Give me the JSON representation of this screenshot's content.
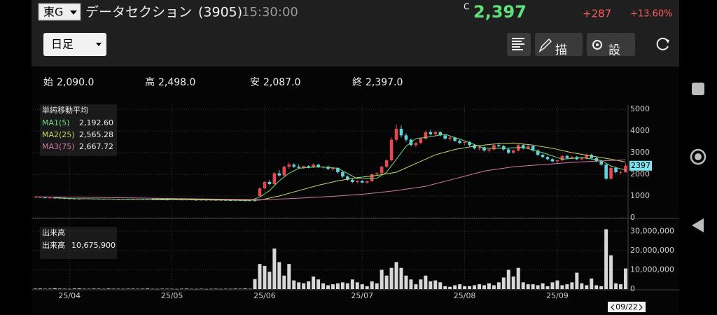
{
  "header": {
    "exchange": "東G",
    "name": "データセクション",
    "code": "(3905)",
    "time": "15:30:00",
    "price_flag": "C",
    "price": "2,397",
    "change": "+287",
    "change_pct": "+13.60%"
  },
  "toolbar": {
    "period": "日足",
    "draw": "描画",
    "settings": "設定"
  },
  "ohlc_row": [
    {
      "label": "始",
      "value": "2,090.0"
    },
    {
      "label": "高",
      "value": "2,498.0"
    },
    {
      "label": "安",
      "value": "2,087.0"
    },
    {
      "label": "終",
      "value": "2,397.0"
    }
  ],
  "chart_data": [
    {
      "type": "candlestick",
      "legend_title": "単純移動平均",
      "up_color": "#e8474f",
      "down_color": "#5fd3e0",
      "xlim": [
        -0.5,
        121.5
      ],
      "ylim": [
        0,
        5200
      ],
      "yticks": [
        0,
        1000,
        2000,
        3000,
        4000,
        5000
      ],
      "grid": true,
      "xticks": [
        {
          "value": 7,
          "label": "25/04"
        },
        {
          "value": 28,
          "label": "25/05"
        },
        {
          "value": 47,
          "label": "25/06"
        },
        {
          "value": 67,
          "label": "25/07"
        },
        {
          "value": 88,
          "label": "25/08"
        },
        {
          "value": 107,
          "label": "25/09"
        }
      ],
      "last_price": 2397,
      "cursor_label": "09/22",
      "ohlc": [
        [
          950,
          980,
          930,
          960
        ],
        [
          960,
          970,
          920,
          930
        ],
        [
          930,
          950,
          900,
          910
        ],
        [
          910,
          940,
          890,
          925
        ],
        [
          925,
          930,
          880,
          890
        ],
        [
          890,
          920,
          870,
          905
        ],
        [
          905,
          915,
          860,
          870
        ],
        [
          870,
          900,
          850,
          885
        ],
        [
          885,
          890,
          840,
          850
        ],
        [
          850,
          880,
          830,
          870
        ],
        [
          870,
          900,
          860,
          890
        ],
        [
          890,
          895,
          850,
          860
        ],
        [
          860,
          880,
          840,
          875
        ],
        [
          875,
          885,
          845,
          850
        ],
        [
          850,
          870,
          830,
          865
        ],
        [
          865,
          880,
          850,
          870
        ],
        [
          870,
          875,
          840,
          845
        ],
        [
          845,
          860,
          830,
          855
        ],
        [
          855,
          870,
          840,
          860
        ],
        [
          860,
          865,
          830,
          835
        ],
        [
          835,
          850,
          820,
          845
        ],
        [
          845,
          860,
          830,
          850
        ],
        [
          850,
          855,
          820,
          825
        ],
        [
          825,
          845,
          815,
          840
        ],
        [
          840,
          850,
          825,
          830
        ],
        [
          830,
          845,
          820,
          840
        ],
        [
          840,
          850,
          830,
          835
        ],
        [
          835,
          845,
          820,
          830
        ],
        [
          830,
          850,
          820,
          845
        ],
        [
          845,
          855,
          830,
          835
        ],
        [
          835,
          840,
          815,
          820
        ],
        [
          820,
          840,
          810,
          835
        ],
        [
          835,
          845,
          820,
          825
        ],
        [
          825,
          835,
          805,
          810
        ],
        [
          810,
          830,
          800,
          825
        ],
        [
          825,
          830,
          805,
          810
        ],
        [
          810,
          825,
          800,
          820
        ],
        [
          820,
          830,
          800,
          805
        ],
        [
          805,
          820,
          790,
          815
        ],
        [
          815,
          825,
          800,
          805
        ],
        [
          805,
          815,
          785,
          790
        ],
        [
          790,
          810,
          780,
          805
        ],
        [
          805,
          810,
          785,
          795
        ],
        [
          795,
          805,
          775,
          780
        ],
        [
          780,
          800,
          770,
          795
        ],
        [
          795,
          800,
          775,
          785
        ],
        [
          1000,
          1400,
          980,
          1350
        ],
        [
          1350,
          1700,
          1300,
          1650
        ],
        [
          1650,
          1750,
          1500,
          1550
        ],
        [
          1550,
          2100,
          1500,
          2050
        ],
        [
          2050,
          2200,
          1900,
          1950
        ],
        [
          1950,
          2400,
          1900,
          2350
        ],
        [
          2350,
          2550,
          2250,
          2450
        ],
        [
          2450,
          2500,
          2300,
          2350
        ],
        [
          2350,
          2450,
          2250,
          2300
        ],
        [
          2300,
          2400,
          2250,
          2380
        ],
        [
          2380,
          2420,
          2280,
          2320
        ],
        [
          2320,
          2500,
          2300,
          2450
        ],
        [
          2450,
          2480,
          2300,
          2320
        ],
        [
          2320,
          2380,
          2250,
          2350
        ],
        [
          2350,
          2400,
          2200,
          2250
        ],
        [
          2250,
          2350,
          2150,
          2300
        ],
        [
          2300,
          2320,
          2050,
          2100
        ],
        [
          2100,
          2150,
          1850,
          1900
        ],
        [
          1900,
          1950,
          1700,
          1750
        ],
        [
          1750,
          1800,
          1600,
          1650
        ],
        [
          1650,
          1720,
          1580,
          1700
        ],
        [
          1700,
          1750,
          1600,
          1620
        ],
        [
          1620,
          1700,
          1580,
          1680
        ],
        [
          1680,
          2050,
          1650,
          2000
        ],
        [
          2000,
          2100,
          1950,
          2050
        ],
        [
          2050,
          2400,
          2000,
          2350
        ],
        [
          2350,
          2700,
          2300,
          2650
        ],
        [
          2650,
          3700,
          2600,
          3600
        ],
        [
          3600,
          4300,
          3500,
          4100
        ],
        [
          4100,
          4250,
          3700,
          3800
        ],
        [
          3800,
          3900,
          3500,
          3600
        ],
        [
          3600,
          3650,
          3300,
          3350
        ],
        [
          3350,
          3500,
          3250,
          3450
        ],
        [
          3450,
          3700,
          3400,
          3650
        ],
        [
          3650,
          4000,
          3600,
          3950
        ],
        [
          3950,
          4050,
          3800,
          3850
        ],
        [
          3850,
          4000,
          3750,
          3950
        ],
        [
          3950,
          3980,
          3750,
          3800
        ],
        [
          3800,
          3850,
          3600,
          3650
        ],
        [
          3650,
          3750,
          3550,
          3700
        ],
        [
          3700,
          3720,
          3500,
          3550
        ],
        [
          3550,
          3600,
          3400,
          3450
        ],
        [
          3450,
          3550,
          3350,
          3500
        ],
        [
          3500,
          3520,
          3300,
          3350
        ],
        [
          3350,
          3400,
          3150,
          3200
        ],
        [
          3200,
          3300,
          3100,
          3250
        ],
        [
          3250,
          3280,
          3050,
          3100
        ],
        [
          3100,
          3200,
          3000,
          3150
        ],
        [
          3150,
          3400,
          3100,
          3350
        ],
        [
          3350,
          3450,
          3250,
          3300
        ],
        [
          3300,
          3350,
          3100,
          3150
        ],
        [
          3150,
          3200,
          2950,
          3000
        ],
        [
          3000,
          3150,
          2950,
          3100
        ],
        [
          3100,
          3400,
          3050,
          3350
        ],
        [
          3350,
          3400,
          3150,
          3200
        ],
        [
          3200,
          3350,
          3150,
          3300
        ],
        [
          3300,
          3320,
          3050,
          3100
        ],
        [
          3100,
          3150,
          2850,
          2900
        ],
        [
          2900,
          2950,
          2750,
          2800
        ],
        [
          2800,
          2850,
          2650,
          2700
        ],
        [
          2700,
          2750,
          2550,
          2600
        ],
        [
          2600,
          2700,
          2500,
          2650
        ],
        [
          2650,
          2900,
          2600,
          2850
        ],
        [
          2850,
          2900,
          2700,
          2750
        ],
        [
          2750,
          2850,
          2700,
          2800
        ],
        [
          2800,
          2850,
          2650,
          2700
        ],
        [
          2700,
          2800,
          2650,
          2750
        ],
        [
          2750,
          2950,
          2700,
          2900
        ],
        [
          2900,
          2950,
          2700,
          2750
        ],
        [
          2750,
          2800,
          2550,
          2600
        ],
        [
          2600,
          2650,
          2400,
          2450
        ],
        [
          2450,
          2500,
          1750,
          1800
        ],
        [
          1800,
          2400,
          1750,
          2300
        ],
        [
          2300,
          2350,
          2050,
          2100
        ],
        [
          2100,
          2150,
          2000,
          2110
        ],
        [
          2090,
          2498,
          2087,
          2397
        ]
      ],
      "ma": [
        {
          "name": "MA1(5)",
          "latest": "2,192.60",
          "color": "#6fdc7a",
          "x": [
            4,
            8,
            12,
            16,
            20,
            24,
            28,
            32,
            36,
            40,
            44,
            46,
            48,
            50,
            52,
            54,
            58,
            62,
            66,
            70,
            72,
            74,
            76,
            78,
            80,
            84,
            88,
            92,
            96,
            100,
            104,
            108,
            112,
            116,
            118,
            121
          ],
          "values": [
            920,
            880,
            870,
            860,
            850,
            840,
            835,
            830,
            820,
            810,
            795,
            950,
            1250,
            1700,
            2050,
            2280,
            2350,
            2280,
            1800,
            1820,
            2100,
            2700,
            3300,
            3650,
            3700,
            3850,
            3550,
            3200,
            3200,
            3250,
            3000,
            2700,
            2770,
            2650,
            2380,
            2192.6
          ]
        },
        {
          "name": "MA2(25)",
          "latest": "2,565.28",
          "color": "#c9d86a",
          "x": [
            24,
            30,
            36,
            42,
            46,
            50,
            54,
            58,
            62,
            66,
            70,
            74,
            78,
            82,
            86,
            90,
            94,
            98,
            102,
            106,
            110,
            114,
            118,
            121
          ],
          "values": [
            870,
            850,
            840,
            820,
            810,
            1000,
            1250,
            1500,
            1700,
            1850,
            1950,
            2100,
            2500,
            2900,
            3150,
            3300,
            3400,
            3450,
            3350,
            3200,
            3000,
            2850,
            2700,
            2565.28
          ]
        },
        {
          "name": "MA3(75)",
          "latest": "2,667.72",
          "color": "#d27aa6",
          "x": [
            0,
            10,
            20,
            30,
            40,
            46,
            50,
            56,
            62,
            68,
            74,
            80,
            86,
            92,
            98,
            104,
            110,
            116,
            121
          ],
          "values": [
            960,
            940,
            910,
            880,
            850,
            830,
            860,
            920,
            1000,
            1100,
            1250,
            1450,
            1800,
            2150,
            2350,
            2450,
            2550,
            2620,
            2667.72
          ]
        }
      ]
    },
    {
      "type": "bar",
      "legend_title": "出来高",
      "series_name": "出来高",
      "latest": "10,675,900",
      "color": "#d8d8d8",
      "xlim": [
        -0.5,
        121.5
      ],
      "ylim": [
        0,
        33000000
      ],
      "grid": true,
      "yticks": [
        0,
        {
          "value": 10000000,
          "label": "10,000,000"
        },
        {
          "value": 20000000,
          "label": "20,000,000"
        },
        {
          "value": 30000000,
          "label": "30,000,000"
        }
      ],
      "values": [
        250000,
        300000,
        180000,
        220000,
        400000,
        260000,
        200000,
        150000,
        300000,
        350000,
        200000,
        180000,
        250000,
        220000,
        150000,
        300000,
        200000,
        180000,
        150000,
        220000,
        250000,
        180000,
        200000,
        300000,
        150000,
        120000,
        200000,
        180000,
        150000,
        100000,
        200000,
        250000,
        150000,
        120000,
        180000,
        100000,
        150000,
        200000,
        120000,
        180000,
        150000,
        250000,
        200000,
        300000,
        180000,
        5200000,
        13000000,
        12000000,
        9000000,
        21000000,
        14000000,
        7000000,
        13000000,
        4500000,
        3500000,
        3000000,
        4000000,
        6500000,
        5000000,
        3000000,
        2000000,
        2500000,
        3000000,
        3500000,
        3000000,
        5000000,
        3500000,
        2500000,
        1500000,
        4000000,
        3000000,
        10000000,
        7000000,
        11000000,
        14000000,
        11000000,
        7000000,
        5000000,
        2500000,
        5000000,
        7000000,
        4000000,
        4500000,
        3500000,
        1500000,
        1200000,
        2000000,
        2500000,
        1500000,
        1500000,
        2000000,
        2500000,
        2000000,
        3000000,
        2000000,
        3500000,
        6000000,
        10000000,
        6500000,
        11000000,
        3500000,
        2500000,
        2500000,
        2000000,
        3000000,
        1500000,
        3500000,
        4500000,
        2000000,
        2500000,
        3500000,
        8500000,
        3000000,
        2000000,
        5500000,
        2000000,
        1500000,
        31000000,
        17500000,
        3000000,
        2500000,
        10675900
      ]
    }
  ]
}
